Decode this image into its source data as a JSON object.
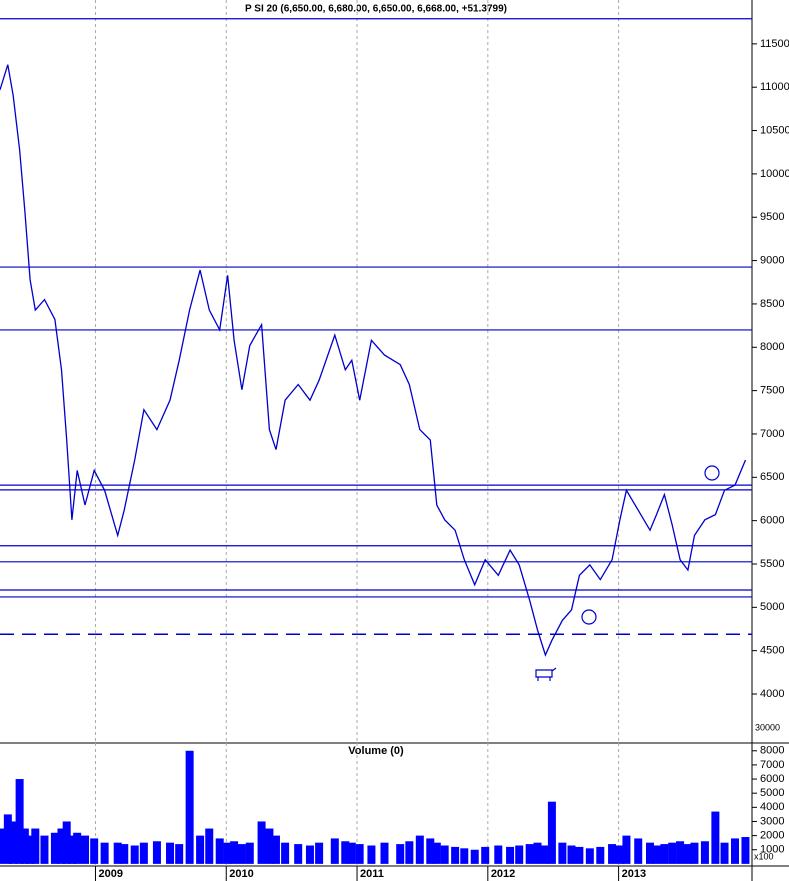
{
  "chart_data": [
    {
      "type": "line",
      "title": "P SI 20 (6,650.00, 6,680.00, 6,650.00, 6,668.00, +51.3799)",
      "color": "#0000cc",
      "x": [
        2008.27,
        2008.33,
        2008.37,
        2008.42,
        2008.46,
        2008.5,
        2008.54,
        2008.61,
        2008.69,
        2008.74,
        2008.78,
        2008.82,
        2008.86,
        2008.92,
        2008.99,
        2009.07,
        2009.17,
        2009.22,
        2009.3,
        2009.37,
        2009.47,
        2009.57,
        2009.64,
        2009.72,
        2009.8,
        2009.87,
        2009.95,
        2010.01,
        2010.06,
        2010.12,
        2010.18,
        2010.27,
        2010.33,
        2010.38,
        2010.45,
        2010.55,
        2010.64,
        2010.71,
        2010.83,
        2010.91,
        2010.96,
        2011.02,
        2011.11,
        2011.21,
        2011.33,
        2011.4,
        2011.48,
        2011.56,
        2011.61,
        2011.67,
        2011.75,
        2011.82,
        2011.9,
        2011.98,
        2012.08,
        2012.17,
        2012.24,
        2012.32,
        2012.38,
        2012.44,
        2012.49,
        2012.57,
        2012.64,
        2012.7,
        2012.78,
        2012.86,
        2012.95,
        2013.01,
        2013.06,
        2013.15,
        2013.24,
        2013.29,
        2013.35,
        2013.41,
        2013.47,
        2013.53,
        2013.58,
        2013.66,
        2013.74,
        2013.81,
        2013.89,
        2013.97
      ],
      "values": [
        10970,
        11260,
        10910,
        10280,
        9580,
        8780,
        8430,
        8550,
        8320,
        7740,
        6930,
        6010,
        6580,
        6180,
        6580,
        6350,
        5830,
        6120,
        6700,
        7280,
        7050,
        7390,
        7850,
        8430,
        8890,
        8430,
        8200,
        8830,
        8080,
        7510,
        8020,
        8260,
        7050,
        6820,
        7390,
        7570,
        7390,
        7620,
        8140,
        7740,
        7850,
        7390,
        8080,
        7910,
        7800,
        7570,
        7050,
        6930,
        6180,
        6010,
        5890,
        5550,
        5260,
        5550,
        5370,
        5660,
        5490,
        5080,
        4740,
        4450,
        4620,
        4850,
        4970,
        5370,
        5490,
        5320,
        5550,
        6010,
        6350,
        6120,
        5890,
        6070,
        6300,
        5950,
        5550,
        5430,
        5830,
        6010,
        6070,
        6350,
        6410,
        6700
      ],
      "xlim": [
        2008.27,
        2014.02
      ],
      "ylim": [
        3435,
        12006
      ],
      "yticks": [
        4000,
        4500,
        5000,
        5500,
        6000,
        6500,
        7000,
        7500,
        8000,
        8500,
        9000,
        9500,
        10000,
        10500,
        11000,
        11500
      ],
      "axis_note": "30000",
      "reference_lines": [
        {
          "value": 11790,
          "style": "solid"
        },
        {
          "value": 8925,
          "style": "solid"
        },
        {
          "value": 8200,
          "style": "solid"
        },
        {
          "value": 6410,
          "style": "solid"
        },
        {
          "value": 6355,
          "style": "solid"
        },
        {
          "value": 5710,
          "style": "solid"
        },
        {
          "value": 5525,
          "style": "solid"
        },
        {
          "value": 5200,
          "style": "solid"
        },
        {
          "value": 5120,
          "style": "solid"
        },
        {
          "value": 4690,
          "style": "dashed"
        }
      ]
    },
    {
      "type": "bar",
      "title": "Volume (0)",
      "color": "#0000ff",
      "unit_label": "x100",
      "x": [
        2008.27,
        2008.33,
        2008.37,
        2008.42,
        2008.46,
        2008.5,
        2008.54,
        2008.61,
        2008.69,
        2008.74,
        2008.78,
        2008.82,
        2008.86,
        2008.92,
        2008.99,
        2009.07,
        2009.17,
        2009.22,
        2009.3,
        2009.37,
        2009.47,
        2009.57,
        2009.64,
        2009.72,
        2009.8,
        2009.87,
        2009.95,
        2010.01,
        2010.06,
        2010.12,
        2010.18,
        2010.27,
        2010.33,
        2010.38,
        2010.45,
        2010.55,
        2010.64,
        2010.71,
        2010.83,
        2010.91,
        2010.96,
        2011.02,
        2011.11,
        2011.21,
        2011.33,
        2011.4,
        2011.48,
        2011.56,
        2011.61,
        2011.67,
        2011.75,
        2011.82,
        2011.9,
        2011.98,
        2012.08,
        2012.17,
        2012.24,
        2012.32,
        2012.38,
        2012.44,
        2012.49,
        2012.57,
        2012.64,
        2012.7,
        2012.78,
        2012.86,
        2012.95,
        2013.01,
        2013.06,
        2013.15,
        2013.24,
        2013.29,
        2013.35,
        2013.41,
        2013.47,
        2013.53,
        2013.58,
        2013.66,
        2013.74,
        2013.81,
        2013.89,
        2013.97
      ],
      "values": [
        2500,
        3500,
        3000,
        6000,
        2500,
        2000,
        2500,
        2000,
        2200,
        2500,
        3000,
        2000,
        2200,
        2000,
        1800,
        1500,
        1500,
        1400,
        1300,
        1500,
        1600,
        1500,
        1400,
        8000,
        2000,
        2500,
        1800,
        1500,
        1600,
        1400,
        1500,
        3000,
        2500,
        2000,
        1500,
        1400,
        1300,
        1500,
        1800,
        1600,
        1500,
        1400,
        1300,
        1500,
        1400,
        1600,
        2000,
        1800,
        1500,
        1300,
        1200,
        1100,
        1000,
        1200,
        1300,
        1200,
        1300,
        1400,
        1500,
        1300,
        4400,
        1500,
        1300,
        1200,
        1100,
        1200,
        1400,
        1300,
        2000,
        1800,
        1500,
        1300,
        1400,
        1500,
        1600,
        1400,
        1500,
        1600,
        3700,
        1500,
        1800,
        1900
      ],
      "xlim": [
        2008.27,
        2014.02
      ],
      "ylim": [
        -150,
        8550
      ],
      "yticks": [
        1000,
        2000,
        3000,
        4000,
        5000,
        6000,
        7000,
        8000
      ],
      "xticks": [
        2009,
        2010,
        2011,
        2012,
        2013
      ]
    }
  ]
}
